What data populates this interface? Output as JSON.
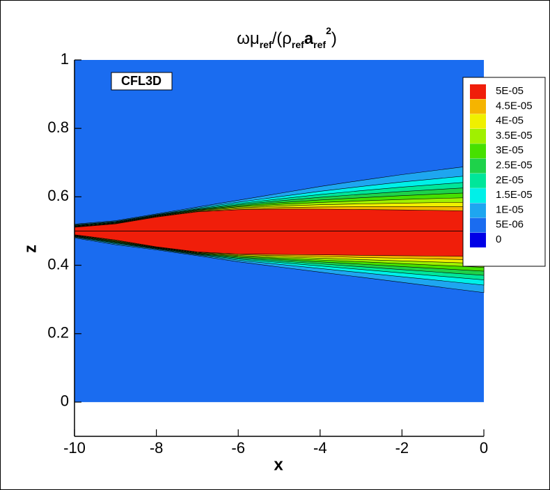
{
  "chart_data": {
    "type": "contour",
    "title_parts": [
      "ωμ",
      "ref",
      "/(ρ",
      "ref",
      "a",
      "ref",
      "2",
      ")"
    ],
    "xlabel": "x",
    "ylabel": "z",
    "annotation": "CFL3D",
    "xlim": [
      -10,
      0
    ],
    "ylim": [
      -0.1,
      1
    ],
    "xticks": [
      -10,
      -8,
      -6,
      -4,
      -2,
      0
    ],
    "yticks": [
      0,
      0.2,
      0.4,
      0.6,
      0.8,
      1
    ],
    "levels": [
      0,
      {
        "value": 5e-06,
        "label": "5E-06"
      },
      {
        "value": 1e-05,
        "label": "1E-05"
      },
      {
        "value": 1.5e-05,
        "label": "1.5E-05"
      },
      {
        "value": 2e-05,
        "label": "2E-05"
      },
      {
        "value": 2.5e-05,
        "label": "2.5E-05"
      },
      {
        "value": 3e-05,
        "label": "3E-05"
      },
      {
        "value": 3.5e-05,
        "label": "3.5E-05"
      },
      {
        "value": 4e-05,
        "label": "4E-05"
      },
      {
        "value": 4.5e-05,
        "label": "4.5E-05"
      },
      {
        "value": 5e-05,
        "label": "5E-05"
      }
    ],
    "colors": [
      "#0000e6",
      "#1a6cf0",
      "#1ea6f0",
      "#00f0e8",
      "#00e69a",
      "#1ed24a",
      "#46e000",
      "#a0f000",
      "#f0f000",
      "#f5b400",
      "#f01e0a"
    ]
  }
}
